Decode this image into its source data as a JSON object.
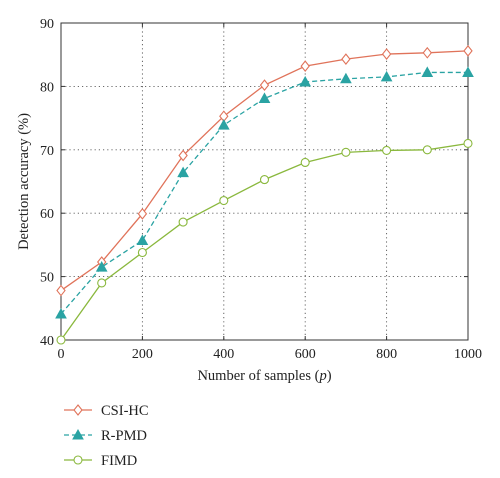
{
  "chart_data": {
    "type": "line",
    "x": [
      0,
      100,
      200,
      300,
      400,
      500,
      600,
      700,
      800,
      900,
      1000
    ],
    "xlabel": "Number of samples (",
    "xlabel_var": "p",
    "xlabel_end": ")",
    "ylabel": "Detection accuracy (%)",
    "xlim": [
      0,
      1000
    ],
    "ylim": [
      40,
      90
    ],
    "xticks": [
      0,
      200,
      400,
      600,
      800,
      1000
    ],
    "yticks": [
      40,
      50,
      60,
      70,
      80,
      90
    ],
    "grid": true,
    "legend_position": "below-left",
    "series": [
      {
        "name": "CSI-HC",
        "color": "#e0735a",
        "marker": "diamond",
        "dash": "solid",
        "values": [
          47.8,
          52.3,
          59.9,
          69.1,
          75.3,
          80.2,
          83.2,
          84.3,
          85.1,
          85.3,
          85.6
        ]
      },
      {
        "name": "R-PMD",
        "color": "#2aa3a3",
        "marker": "triangle",
        "dash": "dashed",
        "values": [
          44.1,
          51.5,
          55.7,
          66.4,
          73.9,
          78.1,
          80.7,
          81.2,
          81.5,
          82.2,
          82.2
        ]
      },
      {
        "name": "FIMD",
        "color": "#8ab83d",
        "marker": "circle",
        "dash": "solid",
        "values": [
          40.0,
          49.0,
          53.8,
          58.6,
          62.0,
          65.3,
          68.0,
          69.6,
          69.9,
          70.0,
          71.0
        ]
      }
    ]
  }
}
